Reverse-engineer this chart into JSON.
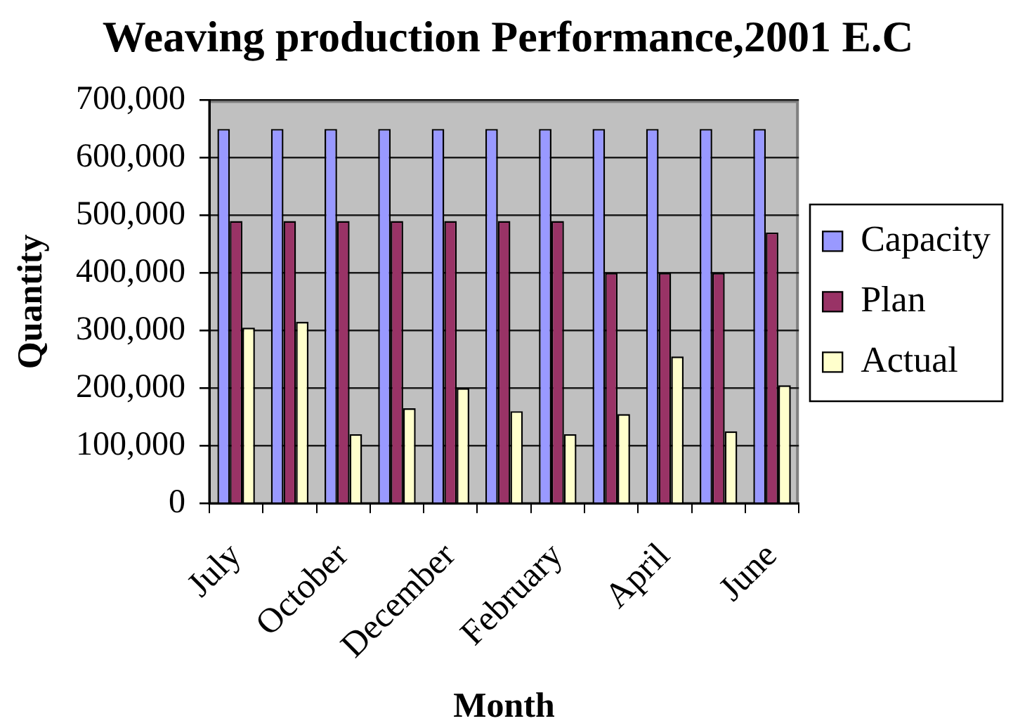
{
  "chart_data": {
    "type": "bar",
    "title": "Weaving production Performance,2001 E.C",
    "xlabel": "Month",
    "ylabel": "Quantity",
    "categories": [
      "July",
      null,
      "October",
      null,
      "December",
      null,
      "February",
      null,
      "April",
      null,
      "June"
    ],
    "series": [
      {
        "name": "Capacity",
        "color": "#9999ff",
        "values": [
          650000,
          650000,
          650000,
          650000,
          650000,
          650000,
          650000,
          650000,
          650000,
          650000,
          650000
        ]
      },
      {
        "name": "Plan",
        "color": "#993366",
        "values": [
          490000,
          490000,
          490000,
          490000,
          490000,
          490000,
          490000,
          400000,
          400000,
          400000,
          470000
        ]
      },
      {
        "name": "Actual",
        "color": "#ffffcc",
        "values": [
          305000,
          315000,
          120000,
          165000,
          200000,
          160000,
          120000,
          155000,
          255000,
          125000,
          205000
        ]
      }
    ],
    "ylim": [
      0,
      700000
    ],
    "yticks": [
      0,
      {
        "value": 100000,
        "label": "100,000"
      },
      {
        "value": 200000,
        "label": "200,000"
      },
      {
        "value": 300000,
        "label": "300,000"
      },
      {
        "value": 400000,
        "label": "400,000"
      },
      {
        "value": 500000,
        "label": "500,000"
      },
      {
        "value": 600000,
        "label": "600,000"
      },
      {
        "value": 700000,
        "label": "700,000"
      }
    ],
    "grid": "y",
    "legend": "right"
  }
}
